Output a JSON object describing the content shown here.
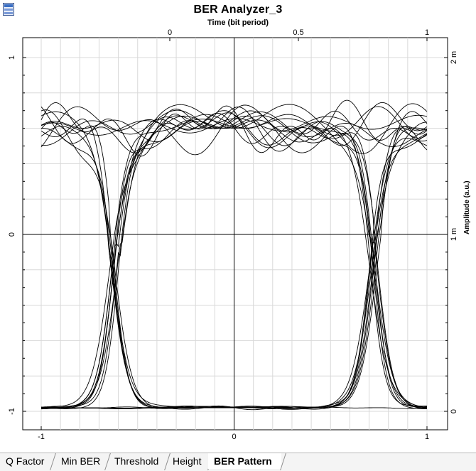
{
  "window": {
    "title": "BER Analyzer_3",
    "icon": "ber-analyzer-window-icon"
  },
  "chart_data": {
    "type": "line",
    "title": "BER Analyzer_3",
    "xlabel_top": "Time (bit period)",
    "ylabel_right": "Amplitude (a.u.)",
    "x_range": [
      -1,
      1
    ],
    "y_range": [
      -1,
      1
    ],
    "top_x_range": [
      -0.5,
      1.0
    ],
    "right_y_range_m": [
      0,
      2
    ],
    "top_ticks": [
      "0",
      "0.5",
      "1"
    ],
    "bottom_ticks": [
      "-1",
      "0",
      "1"
    ],
    "left_ticks": [
      "1",
      "0",
      "-1"
    ],
    "right_ticks": [
      "2 m",
      "1 m",
      "0"
    ],
    "grid": true,
    "eye_diagram": {
      "num_traces": 24,
      "one_level": 0.6,
      "zero_level": -0.98,
      "crossing_times": [
        -0.62,
        0.72
      ]
    }
  },
  "tabs": [
    {
      "label": "Q Factor",
      "active": false
    },
    {
      "label": "Min BER",
      "active": false
    },
    {
      "label": "Threshold",
      "active": false
    },
    {
      "label": "Height",
      "active": false
    },
    {
      "label": "BER Pattern",
      "active": true
    }
  ]
}
